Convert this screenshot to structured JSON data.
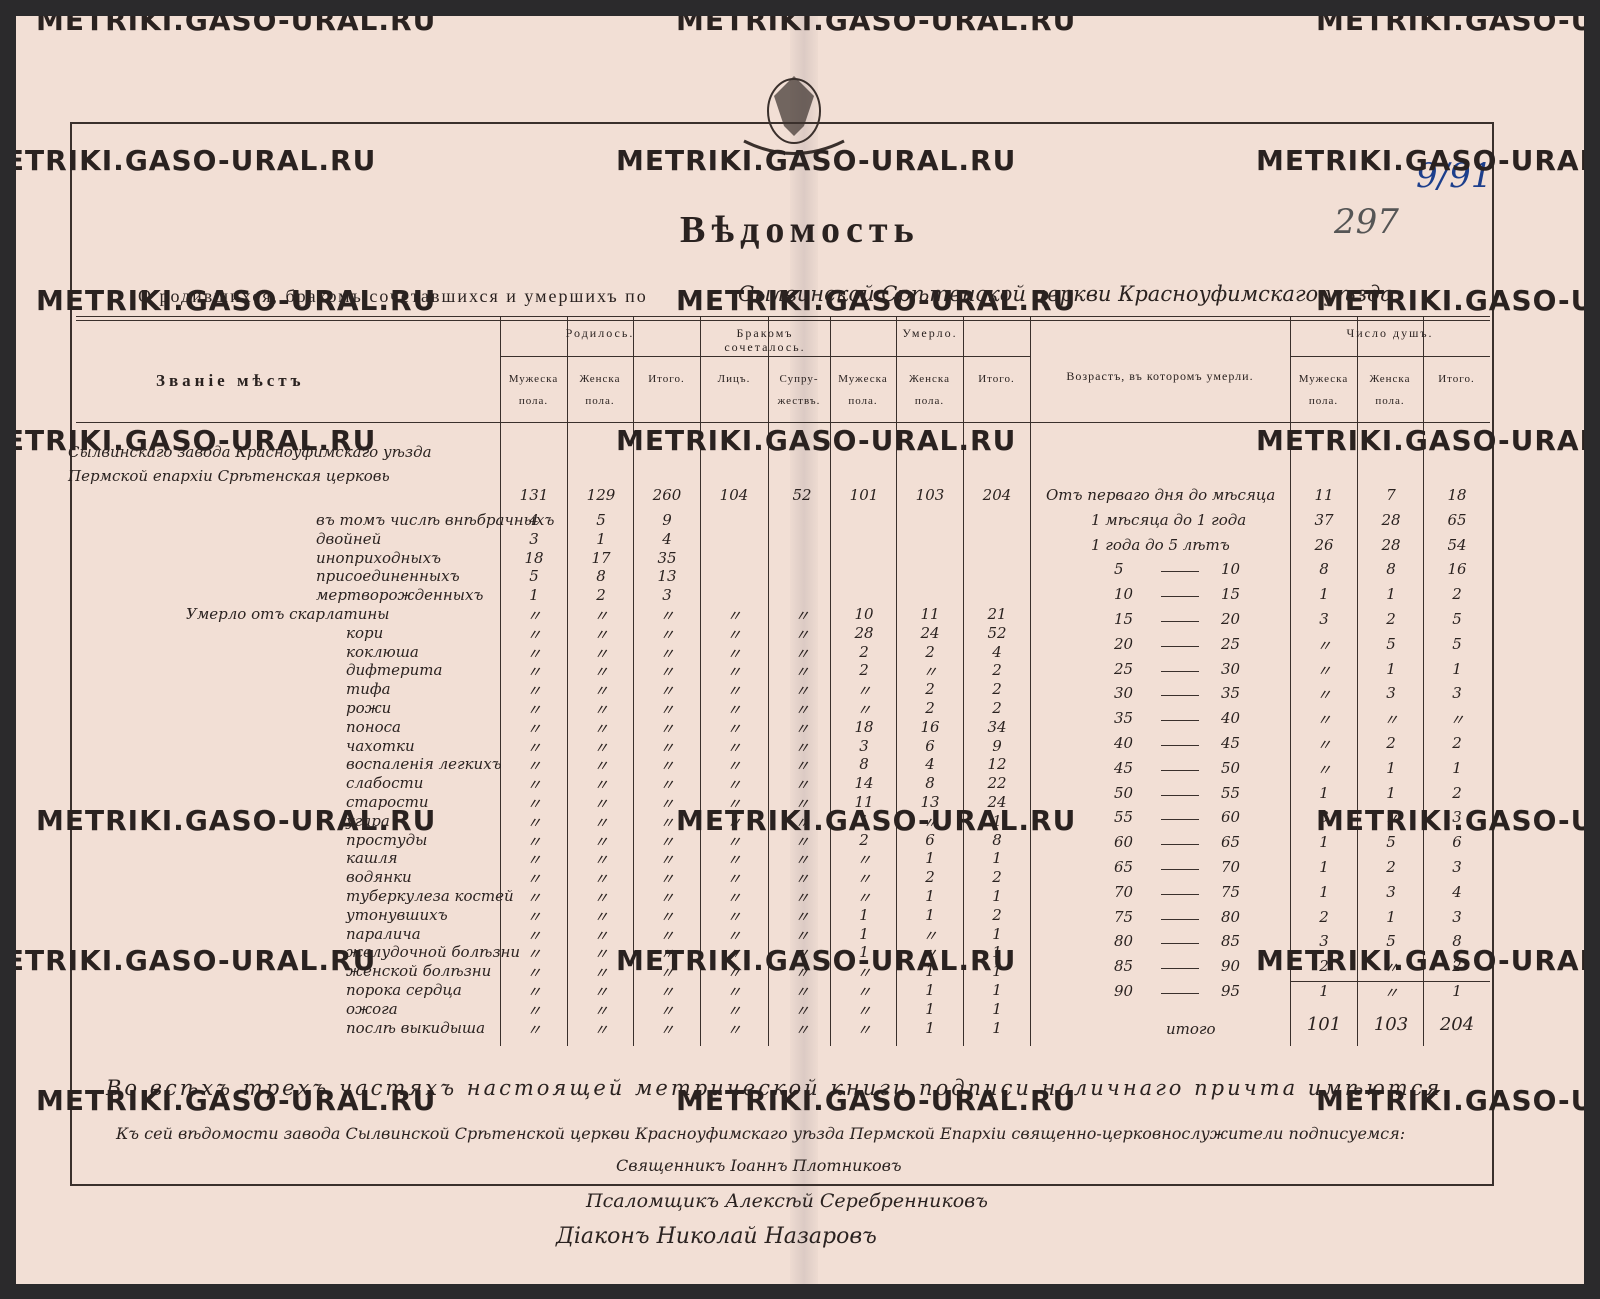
{
  "header": {
    "title": "Вѣдомость",
    "subtitle_printed": "О родившихся, бракомъ сочетавшихся и умершихъ по",
    "subtitle_hand": "Сылвинской Срѣтенской церкви Красноуфимскаго уѣзда.",
    "margin_number": "297",
    "stamp_number": "9/91",
    "watermark": "METRIKI.GASO-URAL.RU"
  },
  "table": {
    "columns": {
      "place": "Званiе мѣстъ",
      "born": "Родилось.",
      "married": "Бракомъ сочеталось.",
      "died": "Умерло.",
      "age": "Возрастъ, въ которомъ умерли.",
      "souls": "Число душъ.",
      "male": "Мужеска пола.",
      "female": "Женска пола.",
      "total": "Итого.",
      "persons": "Лицъ.",
      "couples": "Супру- жествъ."
    },
    "ditto": "〃",
    "rows": [
      {
        "label": "Сылвинскаго завода Красноуфимскаго уѣзда Пермской епархiи Срѣтенская церковь",
        "born": [
          131,
          129,
          260
        ],
        "married": [
          104,
          52
        ],
        "died": [
          101,
          103,
          204
        ]
      },
      {
        "label": "въ томъ числѣ внѣбрачныхъ",
        "born": [
          4,
          5,
          9
        ]
      },
      {
        "label": "двойней",
        "born": [
          3,
          1,
          4
        ]
      },
      {
        "label": "иноприходныхъ",
        "born": [
          18,
          17,
          35
        ]
      },
      {
        "label": "присоединенныхъ",
        "born": [
          5,
          8,
          13
        ]
      },
      {
        "label": "мертворожденныхъ",
        "born": [
          1,
          2,
          3
        ]
      },
      {
        "label": "Умерло отъ скарлатины",
        "born": [
          null,
          null,
          null
        ],
        "married": [
          null,
          null
        ],
        "died": [
          10,
          11,
          21
        ]
      },
      {
        "label": "кори",
        "born": [
          null,
          null,
          null
        ],
        "married": [
          null,
          null
        ],
        "died": [
          28,
          24,
          52
        ]
      },
      {
        "label": "коклюша",
        "born": [
          null,
          null,
          null
        ],
        "married": [
          null,
          null
        ],
        "died": [
          2,
          2,
          4
        ]
      },
      {
        "label": "дифтерита",
        "born": [
          null,
          null,
          null
        ],
        "married": [
          null,
          null
        ],
        "died": [
          2,
          null,
          2
        ]
      },
      {
        "label": "тифа",
        "born": [
          null,
          null,
          null
        ],
        "married": [
          null,
          null
        ],
        "died": [
          null,
          2,
          2
        ]
      },
      {
        "label": "рожи",
        "born": [
          null,
          null,
          null
        ],
        "married": [
          null,
          null
        ],
        "died": [
          null,
          2,
          2
        ]
      },
      {
        "label": "поноса",
        "born": [
          null,
          null,
          null
        ],
        "married": [
          null,
          null
        ],
        "died": [
          18,
          16,
          34
        ]
      },
      {
        "label": "чахотки",
        "born": [
          null,
          null,
          null
        ],
        "married": [
          null,
          null
        ],
        "died": [
          3,
          6,
          9
        ]
      },
      {
        "label": "воспаленiя легкихъ",
        "born": [
          null,
          null,
          null
        ],
        "married": [
          null,
          null
        ],
        "died": [
          8,
          4,
          12
        ]
      },
      {
        "label": "слабости",
        "born": [
          null,
          null,
          null
        ],
        "married": [
          null,
          null
        ],
        "died": [
          14,
          8,
          22
        ]
      },
      {
        "label": "старости",
        "born": [
          null,
          null,
          null
        ],
        "married": [
          null,
          null
        ],
        "died": [
          11,
          13,
          24
        ]
      },
      {
        "label": "угара",
        "born": [
          null,
          null,
          null
        ],
        "married": [
          null,
          null
        ],
        "died": [
          1,
          null,
          1
        ]
      },
      {
        "label": "простуды",
        "born": [
          null,
          null,
          null
        ],
        "married": [
          null,
          null
        ],
        "died": [
          2,
          6,
          8
        ]
      },
      {
        "label": "кашля",
        "born": [
          null,
          null,
          null
        ],
        "married": [
          null,
          null
        ],
        "died": [
          null,
          1,
          1
        ]
      },
      {
        "label": "водянки",
        "born": [
          null,
          null,
          null
        ],
        "married": [
          null,
          null
        ],
        "died": [
          null,
          2,
          2
        ]
      },
      {
        "label": "туберкулеза костей",
        "born": [
          null,
          null,
          null
        ],
        "married": [
          null,
          null
        ],
        "died": [
          null,
          1,
          1
        ]
      },
      {
        "label": "утонувшихъ",
        "born": [
          null,
          null,
          null
        ],
        "married": [
          null,
          null
        ],
        "died": [
          1,
          1,
          2
        ]
      },
      {
        "label": "паралича",
        "born": [
          null,
          null,
          null
        ],
        "married": [
          null,
          null
        ],
        "died": [
          1,
          null,
          1
        ]
      },
      {
        "label": "желудочной болѣзни",
        "born": [
          null,
          null,
          null
        ],
        "married": [
          null,
          null
        ],
        "died": [
          1,
          null,
          1
        ]
      },
      {
        "label": "женской болѣзни",
        "born": [
          null,
          null,
          null
        ],
        "married": [
          null,
          null
        ],
        "died": [
          null,
          1,
          1
        ]
      },
      {
        "label": "порока сердца",
        "born": [
          null,
          null,
          null
        ],
        "married": [
          null,
          null
        ],
        "died": [
          null,
          1,
          1
        ]
      },
      {
        "label": "ожога",
        "born": [
          null,
          null,
          null
        ],
        "married": [
          null,
          null
        ],
        "died": [
          null,
          1,
          1
        ]
      },
      {
        "label": "послѣ выкидыша",
        "born": [
          null,
          null,
          null
        ],
        "married": [
          null,
          null
        ],
        "died": [
          null,
          1,
          1
        ]
      }
    ],
    "ages": [
      {
        "age": "Отъ перваго дня до мѣсяца",
        "souls": [
          11,
          7,
          18
        ]
      },
      {
        "age": "1 мѣсяца до 1 года",
        "souls": [
          37,
          28,
          65
        ]
      },
      {
        "age": "1 года до 5 лѣтъ",
        "souls": [
          26,
          28,
          54
        ]
      },
      {
        "from": 5,
        "to": 10,
        "souls": [
          8,
          8,
          16
        ]
      },
      {
        "from": 10,
        "to": 15,
        "souls": [
          1,
          1,
          2
        ]
      },
      {
        "from": 15,
        "to": 20,
        "souls": [
          3,
          2,
          5
        ]
      },
      {
        "from": 20,
        "to": 25,
        "souls": [
          null,
          5,
          5
        ]
      },
      {
        "from": 25,
        "to": 30,
        "souls": [
          null,
          1,
          1
        ]
      },
      {
        "from": 30,
        "to": 35,
        "souls": [
          null,
          3,
          3
        ]
      },
      {
        "from": 35,
        "to": 40,
        "souls": [
          null,
          null,
          null
        ]
      },
      {
        "from": 40,
        "to": 45,
        "souls": [
          null,
          2,
          2
        ]
      },
      {
        "from": 45,
        "to": 50,
        "souls": [
          null,
          1,
          1
        ]
      },
      {
        "from": 50,
        "to": 55,
        "souls": [
          1,
          1,
          2
        ]
      },
      {
        "from": 55,
        "to": 60,
        "souls": [
          3,
          null,
          3
        ]
      },
      {
        "from": 60,
        "to": 65,
        "souls": [
          1,
          5,
          6
        ]
      },
      {
        "from": 65,
        "to": 70,
        "souls": [
          1,
          2,
          3
        ]
      },
      {
        "from": 70,
        "to": 75,
        "souls": [
          1,
          3,
          4
        ]
      },
      {
        "from": 75,
        "to": 80,
        "souls": [
          2,
          1,
          3
        ]
      },
      {
        "from": 80,
        "to": 85,
        "souls": [
          3,
          5,
          8
        ]
      },
      {
        "from": 85,
        "to": 90,
        "souls": [
          2,
          null,
          2
        ]
      },
      {
        "from": 90,
        "to": 95,
        "souls": [
          1,
          null,
          1
        ]
      }
    ],
    "total_label": "итого",
    "totals": [
      101,
      103,
      204
    ]
  },
  "footer": {
    "lines": [
      "Во всѣхъ трехъ частяхъ настоящей метрической книги подписи наличнаго причта имѣются.",
      "Къ сей вѣдомости завода Сылвинской Срѣтенской церкви Красноуфимскаго уѣзда Пермской Епархiи священно-церковнослужители подписуемся:"
    ],
    "signatures": [
      "Священникъ Iоаннъ Плотниковъ",
      "Псаломщикъ Алексѣй Серебренниковъ",
      "Дiаконъ Николай Назаровъ"
    ]
  }
}
